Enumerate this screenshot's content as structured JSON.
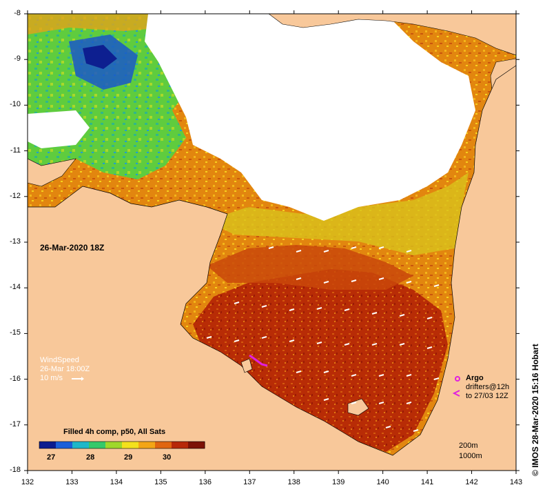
{
  "axes": {
    "x_ticks": [
      "132",
      "133",
      "134",
      "135",
      "136",
      "137",
      "138",
      "139",
      "140",
      "141",
      "142",
      "143"
    ],
    "y_ticks": [
      "-8",
      "-9",
      "-10",
      "-11",
      "-12",
      "-13",
      "-14",
      "-15",
      "-16",
      "-17",
      "-18"
    ]
  },
  "date_label": "26-Mar-2020 18Z",
  "wind_legend": {
    "title": "WindSpeed",
    "time": "26-Mar 18:00Z",
    "scale": "10 m/s"
  },
  "colorbar": {
    "title": "Filled 4h comp, p50, All Sats",
    "ticks": [
      "27",
      "28",
      "29",
      "30"
    ],
    "colors": [
      "#0b1c8f",
      "#1b5fd9",
      "#1fb7c8",
      "#34c96a",
      "#9fd82a",
      "#f3e11d",
      "#f3a515",
      "#e06510",
      "#b72808",
      "#7d1206"
    ]
  },
  "argo_legend": {
    "argo": "Argo",
    "drifters_line1": "drifters@12h",
    "drifters_line2": "to 27/03 12Z"
  },
  "contours": {
    "c1": "200m",
    "c2": "1000m"
  },
  "credit": "© IMOS 28-Mar-2020 15:16 Hobart",
  "colors": {
    "land": "#f8c89a",
    "cloud": "#ffffff",
    "argo": "#e020e0"
  }
}
